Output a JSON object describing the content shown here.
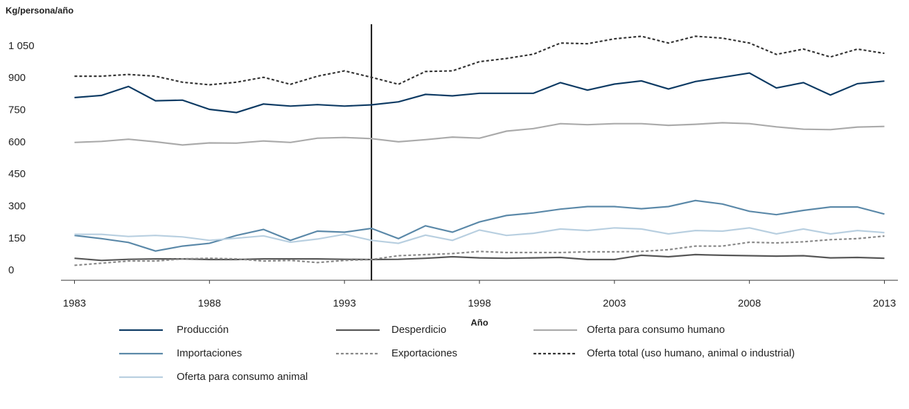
{
  "chart_data": {
    "type": "line",
    "y_label": "Kg/persona/año",
    "x_label": "Año",
    "x": [
      1983,
      1984,
      1985,
      1986,
      1987,
      1988,
      1989,
      1990,
      1991,
      1992,
      1993,
      1994,
      1995,
      1996,
      1997,
      1998,
      1999,
      2000,
      2001,
      2002,
      2003,
      2004,
      2005,
      2006,
      2007,
      2008,
      2009,
      2010,
      2011,
      2012,
      2013
    ],
    "xlim": [
      1982.5,
      2013.5
    ],
    "xticks": [
      1983,
      1988,
      1993,
      1998,
      2003,
      2008,
      2013
    ],
    "ylim": [
      -45,
      1150
    ],
    "yticks": [
      0,
      150,
      300,
      450,
      600,
      750,
      900,
      {
        "value": 1050,
        "label": "1 050"
      }
    ],
    "vline_x": 1994,
    "grid": false,
    "series": [
      {
        "name": "Producción",
        "color": "#0d3a63",
        "dash": false,
        "values": [
          810,
          820,
          862,
          795,
          798,
          755,
          740,
          780,
          770,
          777,
          770,
          776,
          790,
          825,
          818,
          830,
          830,
          830,
          880,
          845,
          873,
          888,
          850,
          885,
          905,
          925,
          855,
          880,
          822,
          875,
          887
        ]
      },
      {
        "name": "Desperdicio",
        "color": "#555555",
        "dash": false,
        "values": [
          58,
          48,
          53,
          55,
          55,
          52,
          52,
          55,
          55,
          55,
          53,
          52,
          53,
          58,
          65,
          60,
          58,
          60,
          62,
          52,
          52,
          72,
          65,
          75,
          72,
          70,
          68,
          70,
          60,
          62,
          58
        ]
      },
      {
        "name": "Oferta para consumo humano",
        "color": "#aaaaaa",
        "dash": false,
        "values": [
          600,
          605,
          615,
          603,
          588,
          598,
          597,
          607,
          600,
          620,
          623,
          618,
          603,
          613,
          625,
          620,
          653,
          665,
          688,
          683,
          688,
          688,
          680,
          685,
          692,
          688,
          673,
          662,
          660,
          672,
          675
        ]
      },
      {
        "name": "Importaciones",
        "color": "#5a88a8",
        "dash": false,
        "values": [
          165,
          150,
          132,
          92,
          115,
          128,
          165,
          193,
          142,
          185,
          180,
          198,
          150,
          210,
          180,
          228,
          258,
          270,
          288,
          300,
          300,
          290,
          300,
          328,
          312,
          278,
          262,
          282,
          298,
          298,
          265
        ]
      },
      {
        "name": "Exportaciones",
        "color": "#888888",
        "dash": true,
        "values": [
          25,
          35,
          45,
          45,
          55,
          58,
          55,
          45,
          48,
          38,
          48,
          52,
          70,
          75,
          80,
          90,
          85,
          85,
          85,
          88,
          88,
          90,
          98,
          115,
          115,
          133,
          130,
          135,
          145,
          150,
          162
        ]
      },
      {
        "name": "Oferta total (uso humano, animal o industrial)",
        "color": "#333333",
        "dash": true,
        "values": [
          910,
          910,
          918,
          910,
          882,
          870,
          882,
          905,
          872,
          910,
          935,
          905,
          872,
          932,
          935,
          978,
          993,
          1013,
          1065,
          1062,
          1085,
          1097,
          1065,
          1097,
          1088,
          1065,
          1012,
          1037,
          1000,
          1037,
          1017
        ]
      },
      {
        "name": "Oferta para consumo animal",
        "color": "#b8cfe0",
        "dash": false,
        "values": [
          170,
          170,
          160,
          165,
          158,
          142,
          152,
          163,
          133,
          148,
          170,
          142,
          128,
          166,
          142,
          190,
          165,
          175,
          195,
          188,
          200,
          195,
          172,
          188,
          185,
          200,
          172,
          195,
          172,
          188,
          178
        ]
      }
    ]
  }
}
